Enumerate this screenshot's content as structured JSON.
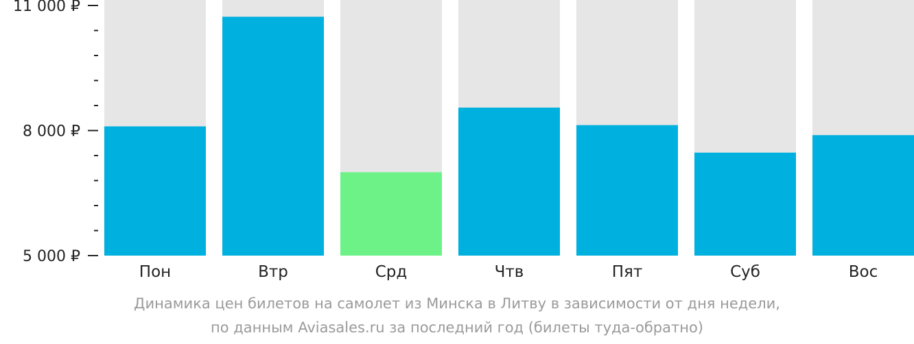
{
  "chart_data": {
    "type": "bar",
    "categories": [
      "Пон",
      "Втр",
      "Срд",
      "Чтв",
      "Пят",
      "Суб",
      "Вос"
    ],
    "values": [
      8100,
      10730,
      7000,
      8550,
      8130,
      7470,
      7890
    ],
    "highlight_index": 2,
    "ylim": [
      5000,
      11000
    ],
    "y_major_ticks": [
      {
        "value": 11000,
        "label": "11 000 ₽"
      },
      {
        "value": 8000,
        "label": "8 000 ₽"
      },
      {
        "value": 5000,
        "label": "5 000 ₽"
      }
    ],
    "y_minor_ticks": [
      10400,
      9800,
      9200,
      8600,
      7400,
      6800,
      6200,
      5600
    ],
    "grid": false,
    "legend": "none",
    "colors": {
      "bar": "#00b0de",
      "highlight": "#6cf286",
      "background_bar": "#e6e6e6",
      "axis": "#222222",
      "caption": "#9a9a9a"
    }
  },
  "caption": {
    "line1": "Динамика цен билетов на самолет из Минска в Литву в зависимости от дня недели,",
    "line2": "по данным Aviasales.ru за последний год (билеты туда-обратно)"
  }
}
